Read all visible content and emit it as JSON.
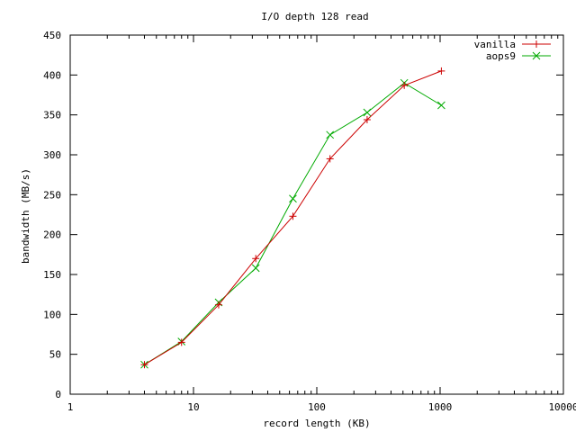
{
  "chart_data": {
    "type": "line",
    "title": "I/O depth 128 read",
    "xlabel": "record length (KB)",
    "ylabel": "bandwidth (MB/s)",
    "xscale": "log",
    "xlim": [
      1,
      10000
    ],
    "ylim": [
      0,
      450
    ],
    "x_ticks": [
      1,
      10,
      100,
      1000,
      10000
    ],
    "x_tick_labels": [
      "1",
      "10",
      "100",
      "1000",
      "10000"
    ],
    "y_ticks": [
      0,
      50,
      100,
      150,
      200,
      250,
      300,
      350,
      400,
      450
    ],
    "y_tick_labels": [
      "0",
      "50",
      "100",
      "150",
      "200",
      "250",
      "300",
      "350",
      "400",
      "450"
    ],
    "grid": false,
    "legend_position": "top-right",
    "x": [
      4,
      8,
      16,
      32,
      64,
      128,
      256,
      512,
      1024
    ],
    "series": [
      {
        "name": "vanilla",
        "color": "#cc0000",
        "marker": "plus",
        "values": [
          37,
          65,
          112,
          170,
          223,
          295,
          344,
          387,
          405
        ]
      },
      {
        "name": "aops9",
        "color": "#00aa00",
        "marker": "cross",
        "values": [
          37,
          66,
          115,
          158,
          245,
          325,
          353,
          390,
          362
        ]
      }
    ]
  }
}
